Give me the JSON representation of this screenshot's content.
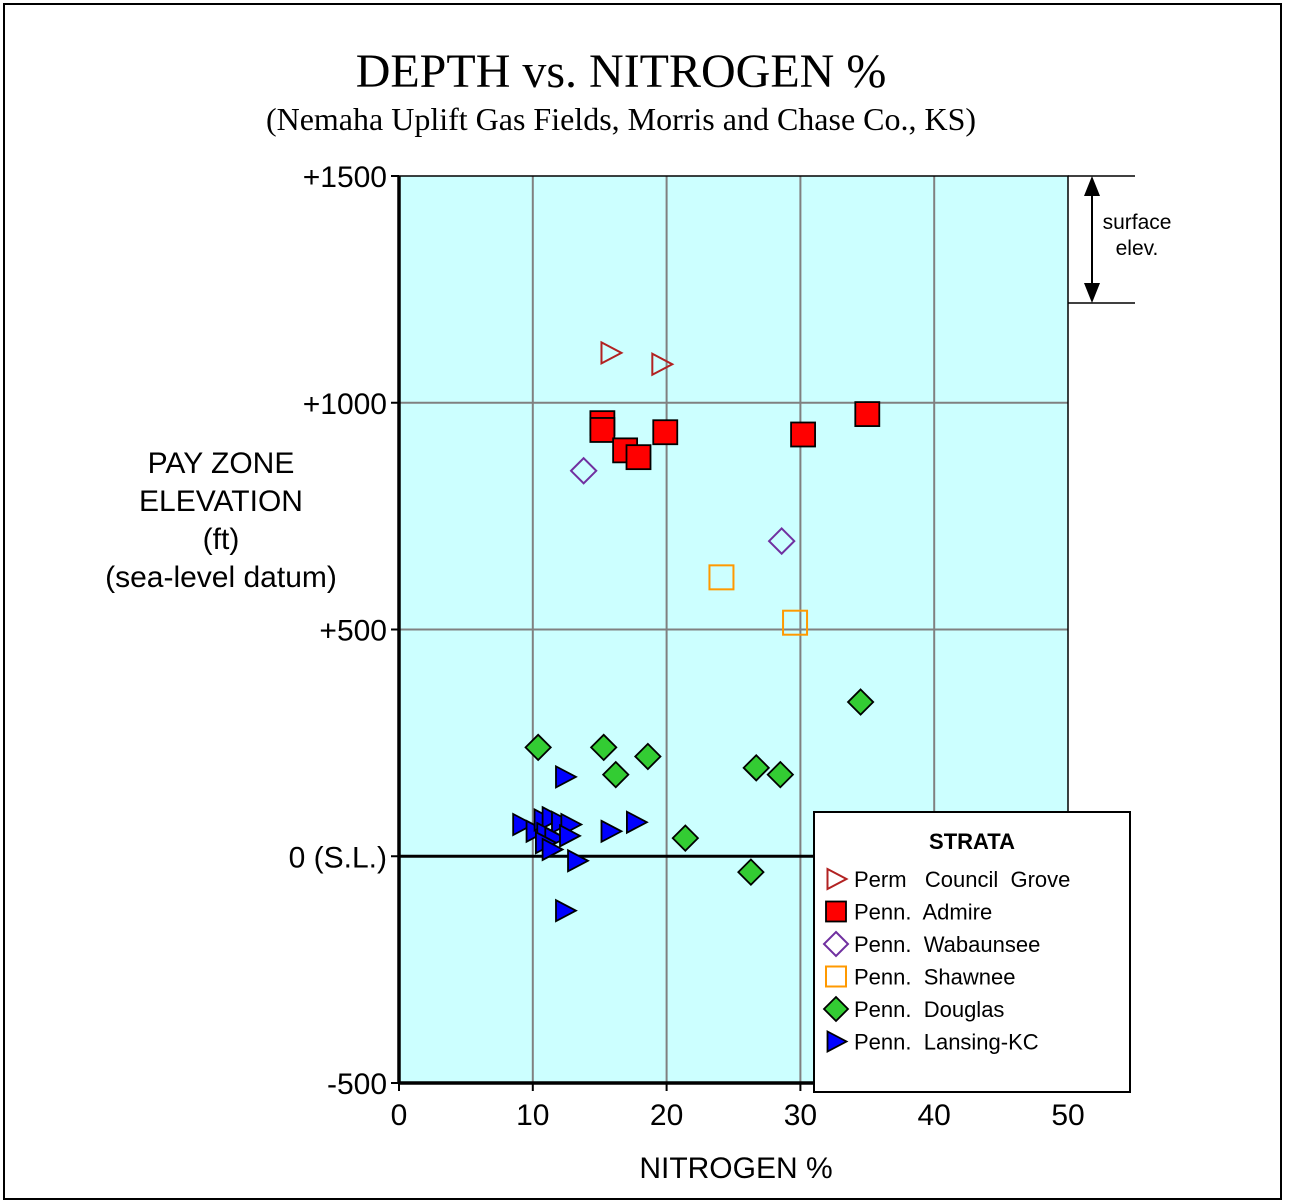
{
  "chart_data": {
    "type": "scatter",
    "title": "DEPTH vs. NITROGEN %",
    "subtitle": "(Nemaha Uplift Gas Fields, Morris and Chase Co., KS)",
    "xlabel": "NITROGEN %",
    "ylabel_lines": [
      "PAY ZONE",
      "ELEVATION",
      "(ft)",
      "(sea-level datum)"
    ],
    "xlim": [
      0,
      50
    ],
    "ylim": [
      -500,
      1500
    ],
    "x_ticks": [
      {
        "value": 0,
        "label": "0"
      },
      {
        "value": 10,
        "label": "10"
      },
      {
        "value": 20,
        "label": "20"
      },
      {
        "value": 30,
        "label": "30"
      },
      {
        "value": 40,
        "label": "40"
      },
      {
        "value": 50,
        "label": "50"
      }
    ],
    "y_ticks": [
      {
        "value": 1500,
        "label": "+1500"
      },
      {
        "value": 1000,
        "label": "+1000"
      },
      {
        "value": 500,
        "label": "+500"
      },
      {
        "value": 0,
        "label": "0 (S.L.)"
      },
      {
        "value": -500,
        "label": "-500"
      }
    ],
    "grid": true,
    "plot_background": "#ccffff",
    "legend": {
      "title": "STRATA",
      "placement": "bottom-right"
    },
    "annotation": {
      "lines": [
        "surface",
        "elev."
      ],
      "y_range": [
        1220,
        1500
      ]
    },
    "series": [
      {
        "name": "Perm   Council  Grove",
        "marker": "triangle-right-open",
        "color": "#b22222",
        "fill": "none",
        "points": [
          [
            15.8,
            1110
          ],
          [
            19.6,
            1085
          ]
        ]
      },
      {
        "name": "Penn.  Admire",
        "marker": "square-filled",
        "color": "#ff0000",
        "fill": "#ff0000",
        "points": [
          [
            15.2,
            955
          ],
          [
            15.2,
            940
          ],
          [
            16.9,
            895
          ],
          [
            17.9,
            880
          ],
          [
            19.9,
            935
          ],
          [
            30.2,
            930
          ],
          [
            35.0,
            975
          ]
        ]
      },
      {
        "name": "Penn.  Wabaunsee",
        "marker": "diamond-open",
        "color": "#7030a0",
        "fill": "none",
        "points": [
          [
            13.8,
            850
          ],
          [
            28.6,
            695
          ]
        ]
      },
      {
        "name": "Penn.  Shawnee",
        "marker": "square-open",
        "color": "#ff9900",
        "fill": "none",
        "points": [
          [
            24.1,
            615
          ],
          [
            29.6,
            515
          ]
        ]
      },
      {
        "name": "Penn.  Douglas",
        "marker": "diamond-filled",
        "color": "#00cc00",
        "fill": "#33cc33",
        "points": [
          [
            10.4,
            240
          ],
          [
            15.3,
            240
          ],
          [
            16.2,
            180
          ],
          [
            18.6,
            220
          ],
          [
            26.7,
            195
          ],
          [
            28.5,
            180
          ],
          [
            34.5,
            340
          ],
          [
            21.4,
            40
          ],
          [
            26.3,
            -35
          ]
        ]
      },
      {
        "name": "Penn.  Lansing-KC",
        "marker": "triangle-right-filled",
        "color": "#0000ff",
        "fill": "#0000ff",
        "points": [
          [
            12.4,
            175
          ],
          [
            9.2,
            70
          ],
          [
            10.2,
            55
          ],
          [
            10.8,
            80
          ],
          [
            11.4,
            85
          ],
          [
            12.1,
            75
          ],
          [
            12.8,
            70
          ],
          [
            11.0,
            50
          ],
          [
            11.6,
            40
          ],
          [
            10.9,
            30
          ],
          [
            11.4,
            15
          ],
          [
            12.7,
            45
          ],
          [
            13.3,
            -10
          ],
          [
            12.4,
            -120
          ],
          [
            15.8,
            55
          ],
          [
            17.7,
            75
          ]
        ]
      }
    ]
  }
}
